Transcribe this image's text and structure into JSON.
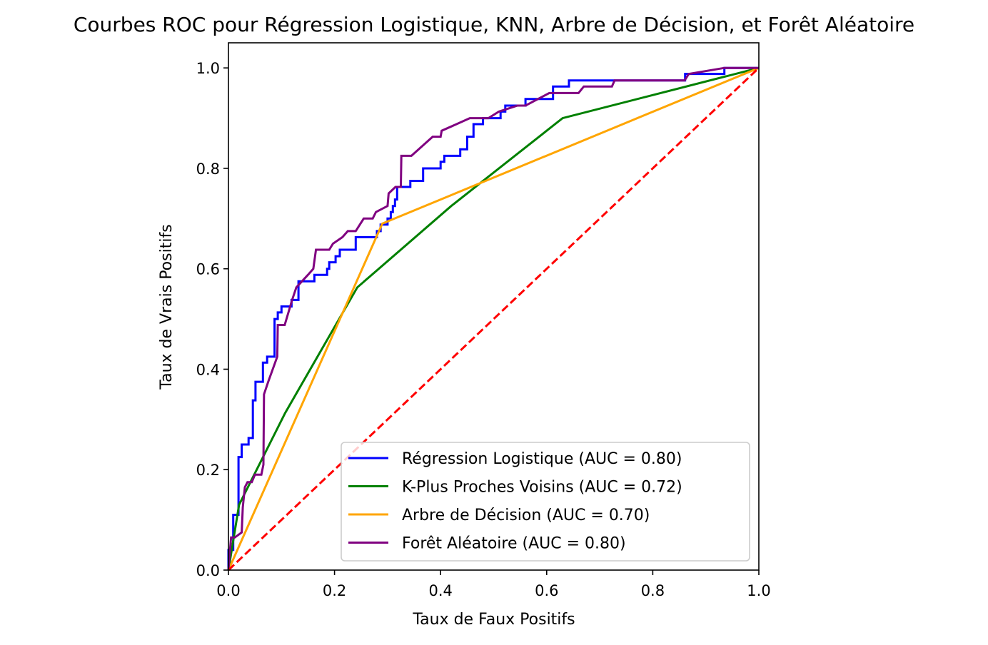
{
  "chart_data": {
    "type": "line",
    "title": "Courbes ROC pour Régression Logistique, KNN, Arbre de Décision, et Forêt Aléatoire",
    "xlabel": "Taux de Faux Positifs",
    "ylabel": "Taux de Vrais Positifs",
    "xlim": [
      0,
      1
    ],
    "ylim": [
      0,
      1.05
    ],
    "xticks": [
      "0.0",
      "0.2",
      "0.4",
      "0.6",
      "0.8",
      "1.0"
    ],
    "yticks": [
      "0.0",
      "0.2",
      "0.4",
      "0.6",
      "0.8",
      "1.0"
    ],
    "grid": false,
    "legend_position": "lower-right",
    "series": [
      {
        "name": "Régression Logistique (AUC = 0.80)",
        "color": "#0000ff",
        "style": "solid",
        "points": [
          [
            0,
            0
          ],
          [
            0,
            0.04
          ],
          [
            0.009,
            0.04
          ],
          [
            0.009,
            0.11
          ],
          [
            0.019,
            0.11
          ],
          [
            0.019,
            0.225
          ],
          [
            0.025,
            0.225
          ],
          [
            0.025,
            0.25
          ],
          [
            0.038,
            0.25
          ],
          [
            0.038,
            0.263
          ],
          [
            0.046,
            0.263
          ],
          [
            0.046,
            0.338
          ],
          [
            0.051,
            0.338
          ],
          [
            0.051,
            0.375
          ],
          [
            0.065,
            0.375
          ],
          [
            0.065,
            0.413
          ],
          [
            0.073,
            0.413
          ],
          [
            0.073,
            0.425
          ],
          [
            0.087,
            0.425
          ],
          [
            0.087,
            0.5
          ],
          [
            0.093,
            0.5
          ],
          [
            0.093,
            0.513
          ],
          [
            0.1,
            0.513
          ],
          [
            0.1,
            0.525
          ],
          [
            0.119,
            0.525
          ],
          [
            0.119,
            0.538
          ],
          [
            0.132,
            0.538
          ],
          [
            0.132,
            0.575
          ],
          [
            0.162,
            0.575
          ],
          [
            0.162,
            0.588
          ],
          [
            0.186,
            0.588
          ],
          [
            0.186,
            0.6
          ],
          [
            0.19,
            0.6
          ],
          [
            0.19,
            0.613
          ],
          [
            0.202,
            0.613
          ],
          [
            0.202,
            0.625
          ],
          [
            0.21,
            0.625
          ],
          [
            0.21,
            0.638
          ],
          [
            0.24,
            0.638
          ],
          [
            0.24,
            0.663
          ],
          [
            0.28,
            0.663
          ],
          [
            0.28,
            0.675
          ],
          [
            0.287,
            0.675
          ],
          [
            0.287,
            0.688
          ],
          [
            0.3,
            0.688
          ],
          [
            0.3,
            0.7
          ],
          [
            0.306,
            0.7
          ],
          [
            0.306,
            0.713
          ],
          [
            0.31,
            0.713
          ],
          [
            0.31,
            0.725
          ],
          [
            0.314,
            0.725
          ],
          [
            0.314,
            0.738
          ],
          [
            0.318,
            0.738
          ],
          [
            0.318,
            0.763
          ],
          [
            0.343,
            0.763
          ],
          [
            0.343,
            0.775
          ],
          [
            0.367,
            0.775
          ],
          [
            0.367,
            0.8
          ],
          [
            0.4,
            0.8
          ],
          [
            0.4,
            0.813
          ],
          [
            0.407,
            0.813
          ],
          [
            0.407,
            0.825
          ],
          [
            0.437,
            0.825
          ],
          [
            0.437,
            0.838
          ],
          [
            0.45,
            0.838
          ],
          [
            0.45,
            0.863
          ],
          [
            0.462,
            0.863
          ],
          [
            0.462,
            0.888
          ],
          [
            0.48,
            0.888
          ],
          [
            0.48,
            0.9
          ],
          [
            0.513,
            0.9
          ],
          [
            0.513,
            0.913
          ],
          [
            0.522,
            0.913
          ],
          [
            0.522,
            0.925
          ],
          [
            0.56,
            0.925
          ],
          [
            0.56,
            0.938
          ],
          [
            0.612,
            0.938
          ],
          [
            0.612,
            0.963
          ],
          [
            0.642,
            0.963
          ],
          [
            0.642,
            0.975
          ],
          [
            0.861,
            0.975
          ],
          [
            0.861,
            0.988
          ],
          [
            0.935,
            0.988
          ],
          [
            0.935,
            1
          ],
          [
            1,
            1
          ]
        ]
      },
      {
        "name": "K-Plus Proches Voisins (AUC = 0.72)",
        "color": "#008000",
        "style": "solid",
        "points": [
          [
            0,
            0
          ],
          [
            0.02,
            0.13
          ],
          [
            0.107,
            0.313
          ],
          [
            0.243,
            0.563
          ],
          [
            0.42,
            0.725
          ],
          [
            0.63,
            0.9
          ],
          [
            1,
            1
          ]
        ]
      },
      {
        "name": "Arbre de Décision (AUC = 0.70)",
        "color": "#ffa500",
        "style": "solid",
        "points": [
          [
            0,
            0
          ],
          [
            0.29,
            0.69
          ],
          [
            1,
            1
          ]
        ]
      },
      {
        "name": "Forêt Aléatoire (AUC = 0.80)",
        "color": "#800080",
        "style": "solid",
        "points": [
          [
            0,
            0
          ],
          [
            0.003,
            0.04
          ],
          [
            0.005,
            0.065
          ],
          [
            0.012,
            0.065
          ],
          [
            0.025,
            0.075
          ],
          [
            0.027,
            0.125
          ],
          [
            0.031,
            0.165
          ],
          [
            0.036,
            0.175
          ],
          [
            0.044,
            0.175
          ],
          [
            0.05,
            0.19
          ],
          [
            0.062,
            0.19
          ],
          [
            0.066,
            0.21
          ],
          [
            0.067,
            0.35
          ],
          [
            0.075,
            0.375
          ],
          [
            0.092,
            0.425
          ],
          [
            0.093,
            0.488
          ],
          [
            0.106,
            0.488
          ],
          [
            0.12,
            0.538
          ],
          [
            0.128,
            0.563
          ],
          [
            0.15,
            0.588
          ],
          [
            0.16,
            0.6
          ],
          [
            0.165,
            0.638
          ],
          [
            0.19,
            0.638
          ],
          [
            0.197,
            0.65
          ],
          [
            0.215,
            0.663
          ],
          [
            0.225,
            0.675
          ],
          [
            0.24,
            0.675
          ],
          [
            0.255,
            0.7
          ],
          [
            0.272,
            0.7
          ],
          [
            0.278,
            0.713
          ],
          [
            0.3,
            0.725
          ],
          [
            0.302,
            0.75
          ],
          [
            0.315,
            0.763
          ],
          [
            0.325,
            0.763
          ],
          [
            0.326,
            0.825
          ],
          [
            0.345,
            0.825
          ],
          [
            0.385,
            0.863
          ],
          [
            0.4,
            0.863
          ],
          [
            0.402,
            0.875
          ],
          [
            0.43,
            0.888
          ],
          [
            0.455,
            0.9
          ],
          [
            0.49,
            0.9
          ],
          [
            0.51,
            0.913
          ],
          [
            0.545,
            0.925
          ],
          [
            0.56,
            0.925
          ],
          [
            0.605,
            0.95
          ],
          [
            0.66,
            0.95
          ],
          [
            0.67,
            0.963
          ],
          [
            0.723,
            0.963
          ],
          [
            0.728,
            0.975
          ],
          [
            0.86,
            0.975
          ],
          [
            0.868,
            0.988
          ],
          [
            0.935,
            1.0
          ],
          [
            1,
            1
          ]
        ]
      },
      {
        "color": "#ff0000",
        "style": "dashed",
        "points": [
          [
            0,
            0
          ],
          [
            1,
            1
          ]
        ]
      }
    ]
  }
}
